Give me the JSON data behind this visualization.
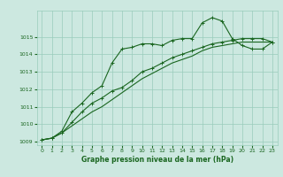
{
  "title": "Graphe pression niveau de la mer (hPa)",
  "bg_color": "#cce8e0",
  "grid_color": "#99ccbb",
  "line_color": "#1a6620",
  "xlim": [
    -0.5,
    23.5
  ],
  "ylim": [
    1008.8,
    1016.5
  ],
  "yticks": [
    1009,
    1010,
    1011,
    1012,
    1013,
    1014,
    1015
  ],
  "xticks": [
    0,
    1,
    2,
    3,
    4,
    5,
    6,
    7,
    8,
    9,
    10,
    11,
    12,
    13,
    14,
    15,
    16,
    17,
    18,
    19,
    20,
    21,
    22,
    23
  ],
  "line1_x": [
    0,
    1,
    2,
    3,
    4,
    5,
    6,
    7,
    8,
    9,
    10,
    11,
    12,
    13,
    14,
    15,
    16,
    17,
    18,
    19,
    20,
    21,
    22,
    23
  ],
  "line1_y": [
    1009.1,
    1009.2,
    1009.6,
    1010.7,
    1011.2,
    1011.8,
    1012.2,
    1013.5,
    1014.3,
    1014.4,
    1014.6,
    1014.6,
    1014.5,
    1014.8,
    1014.9,
    1014.9,
    1015.8,
    1016.1,
    1015.9,
    1014.9,
    1014.5,
    1014.3,
    1014.3,
    1014.7
  ],
  "line2_x": [
    0,
    1,
    2,
    3,
    4,
    5,
    6,
    7,
    8,
    9,
    10,
    11,
    12,
    13,
    14,
    15,
    16,
    17,
    18,
    19,
    20,
    21,
    22,
    23
  ],
  "line2_y": [
    1009.1,
    1009.2,
    1009.5,
    1010.1,
    1010.7,
    1011.2,
    1011.5,
    1011.9,
    1012.1,
    1012.5,
    1013.0,
    1013.2,
    1013.5,
    1013.8,
    1014.0,
    1014.2,
    1014.4,
    1014.6,
    1014.7,
    1014.8,
    1014.9,
    1014.9,
    1014.9,
    1014.7
  ],
  "line3_x": [
    0,
    1,
    2,
    3,
    4,
    5,
    6,
    7,
    8,
    9,
    10,
    11,
    12,
    13,
    14,
    15,
    16,
    17,
    18,
    19,
    20,
    21,
    22,
    23
  ],
  "line3_y": [
    1009.1,
    1009.2,
    1009.5,
    1009.9,
    1010.3,
    1010.7,
    1011.0,
    1011.4,
    1011.8,
    1012.2,
    1012.6,
    1012.9,
    1013.2,
    1013.5,
    1013.7,
    1013.9,
    1014.2,
    1014.4,
    1014.5,
    1014.6,
    1014.7,
    1014.7,
    1014.7,
    1014.7
  ],
  "title_fontsize": 5.5,
  "tick_fontsize": 4.5,
  "linewidth": 0.8,
  "markersize": 2.5
}
